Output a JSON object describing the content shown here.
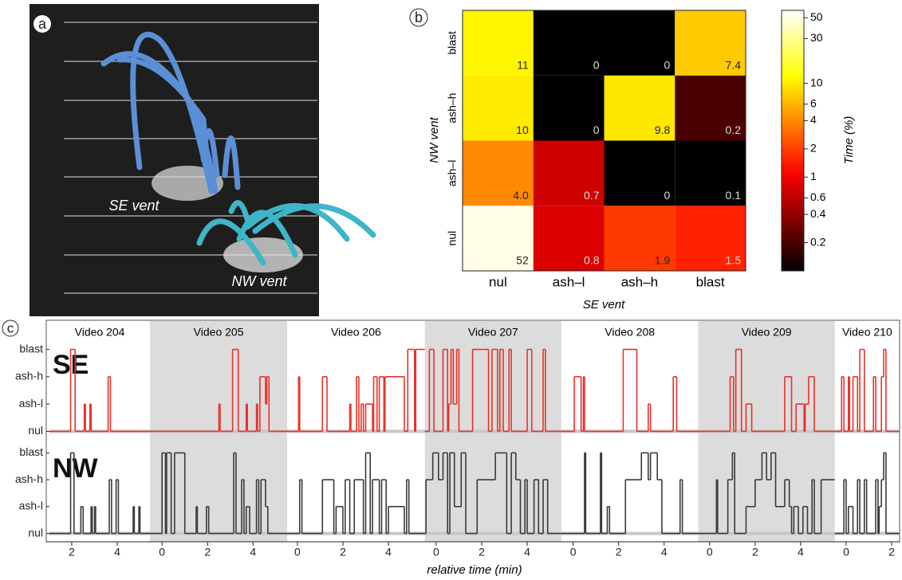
{
  "chart_data": [
    {
      "type": "image",
      "panel": "a",
      "annotations": [
        "SE vent",
        "NW vent"
      ]
    },
    {
      "type": "heatmap",
      "panel": "b",
      "x_label": "SE vent",
      "y_label": "NW vent",
      "x_categories": [
        "nul",
        "ash–l",
        "ash–h",
        "blast"
      ],
      "y_categories": [
        "nul",
        "ash–l",
        "ash–h",
        "blast"
      ],
      "values": [
        [
          52,
          0.8,
          1.9,
          1.5
        ],
        [
          4.0,
          0.7,
          0,
          0.1
        ],
        [
          10,
          0,
          9.8,
          0.2
        ],
        [
          11,
          0,
          0,
          7.4
        ]
      ],
      "value_labels": [
        [
          "52",
          "0.8",
          "1.9",
          "1.5"
        ],
        [
          "4.0",
          "0.7",
          "0",
          "0.1"
        ],
        [
          "10",
          "0",
          "9.8",
          "0.2"
        ],
        [
          "11",
          "0",
          "0",
          "7.4"
        ]
      ],
      "colormap": "hot",
      "log_scale": true,
      "colorbar_label": "Time (%)",
      "clim": [
        0.1,
        60
      ],
      "cticks": [
        0.2,
        0.4,
        0.6,
        1,
        2,
        4,
        6,
        10,
        30,
        50
      ]
    },
    {
      "type": "step",
      "panel": "c",
      "x_label": "relative time (min)",
      "ylim": [
        -0.25,
        3.25
      ],
      "yticks": [
        {
          "value": 0,
          "label": "nul"
        },
        {
          "value": 1,
          "label": "ash-l"
        },
        {
          "value": 2,
          "label": "ash-h"
        },
        {
          "value": 3,
          "label": "blast"
        }
      ],
      "rows": [
        {
          "name": "SE",
          "color": "#e8322a"
        },
        {
          "name": "NW",
          "color": "#3a3a3a"
        }
      ],
      "videos": [
        {
          "name": "Video 204",
          "shaded": false,
          "xlim": [
            1.02,
            5.44
          ],
          "xticks": [
            2,
            4
          ],
          "series": [
            {
              "x": [
                1.02,
                1.95,
                2.15,
                2.55,
                2.6,
                2.8,
                2.85,
                3.6,
                3.7
              ],
              "values": [
                0,
                3,
                0,
                1,
                0,
                1,
                0,
                2,
                0
              ]
            },
            {
              "x": [
                1.02,
                1.95,
                2.1,
                2.4,
                2.5,
                2.85,
                2.9,
                3.0,
                3.05,
                3.65,
                3.75,
                3.95,
                4.05,
                4.7,
                4.75,
                4.95,
                5.0
              ],
              "values": [
                0,
                3,
                0,
                1,
                0,
                1,
                0,
                1,
                0,
                2,
                0,
                2,
                0,
                1,
                0,
                1,
                0
              ]
            }
          ]
        },
        {
          "name": "Video 205",
          "shaded": true,
          "xlim": [
            -0.53,
            5.5
          ],
          "xticks": [
            0,
            2,
            4
          ],
          "series": [
            {
              "x": [
                -0.53,
                2.5,
                2.55,
                3.1,
                3.35,
                3.7,
                3.75,
                4.15,
                4.2,
                4.3,
                4.55,
                4.6,
                4.7
              ],
              "values": [
                0,
                1,
                0,
                3,
                0,
                1,
                0,
                1,
                0,
                2,
                1,
                2,
                0
              ]
            },
            {
              "x": [
                -0.53,
                0.0,
                0.15,
                0.2,
                0.4,
                0.55,
                0.8,
                1.0,
                1.5,
                1.55,
                1.95,
                2.05,
                3.15,
                3.25,
                3.5,
                3.6,
                3.7,
                3.85,
                4.15,
                4.25,
                4.35,
                4.55,
                4.65
              ],
              "values": [
                0,
                3,
                0,
                3,
                0,
                3,
                3,
                0,
                1,
                0,
                1,
                0,
                3,
                0,
                2,
                0,
                1,
                0,
                2,
                0,
                2,
                1,
                0
              ]
            }
          ]
        },
        {
          "name": "Video 206",
          "shaded": false,
          "xlim": [
            -0.45,
            5.6
          ],
          "xticks": [
            0,
            2,
            4
          ],
          "series": [
            {
              "x": [
                -0.45,
                0.05,
                0.1,
                1.1,
                1.3,
                2.3,
                2.35,
                2.6,
                2.7,
                2.8,
                2.9,
                3.0,
                3.3,
                3.35,
                3.5,
                3.6,
                3.8,
                3.85,
                4.7,
                4.85,
                5.15,
                5.2
              ],
              "values": [
                0,
                2,
                0,
                2,
                0,
                1,
                0,
                2,
                0,
                1,
                0,
                1,
                0,
                2,
                0,
                2,
                0,
                2,
                0,
                3,
                0,
                3
              ]
            },
            {
              "x": [
                -0.45,
                0.1,
                0.2,
                1.1,
                1.6,
                1.7,
                2.0,
                2.1,
                2.3,
                2.5,
                2.9,
                3.0,
                3.2,
                3.3,
                3.6,
                3.7,
                3.9,
                4.0,
                4.7,
                4.8,
                4.9
              ],
              "values": [
                0,
                2,
                0,
                2,
                0,
                1,
                0,
                2,
                0,
                2,
                0,
                3,
                0,
                2,
                0,
                2,
                0,
                1,
                0,
                2,
                0
              ]
            }
          ]
        },
        {
          "name": "Video 207",
          "shaded": true,
          "xlim": [
            -0.5,
            5.5
          ],
          "xticks": [
            0,
            2,
            4
          ],
          "series": [
            {
              "x": [
                -0.5,
                -0.3,
                -0.1,
                0.3,
                0.5,
                0.55,
                0.65,
                0.75,
                0.9,
                1.0,
                1.6,
                2.3,
                2.45,
                2.7,
                2.8,
                2.95,
                3.2,
                3.3,
                4.0,
                4.2,
                4.7,
                4.8
              ],
              "values": [
                0,
                3,
                0,
                3,
                0,
                1,
                3,
                1,
                3,
                0,
                3,
                0,
                3,
                0,
                3,
                0,
                3,
                0,
                3,
                0,
                3,
                0
              ]
            },
            {
              "x": [
                -0.5,
                -0.45,
                -0.15,
                0.1,
                0.3,
                0.5,
                0.6,
                0.8,
                1.1,
                1.3,
                1.8,
                2.6,
                3.1,
                3.3,
                3.5,
                3.7,
                3.9,
                4.0,
                4.3,
                4.5,
                4.7,
                4.9,
                5.0
              ],
              "values": [
                0,
                2,
                3,
                2,
                3,
                0,
                3,
                1,
                3,
                0,
                2,
                3,
                0,
                3,
                2,
                0,
                2,
                0,
                2,
                0,
                2,
                0,
                0
              ]
            }
          ]
        },
        {
          "name": "Video 208",
          "shaded": false,
          "xlim": [
            -0.52,
            5.5
          ],
          "xticks": [
            0,
            2,
            4
          ],
          "series": [
            {
              "x": [
                -0.52,
                0.05,
                0.35,
                0.45,
                0.5,
                2.2,
                2.8,
                3.3,
                3.4,
                4.4,
                4.55
              ],
              "values": [
                0,
                2,
                0,
                2,
                0,
                3,
                0,
                1,
                0,
                2,
                0
              ]
            },
            {
              "x": [
                -0.52,
                0.5,
                0.55,
                1.2,
                1.25,
                1.5,
                1.6,
                2.3,
                3.0,
                3.3,
                3.4,
                3.7,
                3.9,
                4.7,
                4.8
              ],
              "values": [
                0,
                3,
                0,
                3,
                0,
                1,
                0,
                2,
                3,
                2,
                3,
                2,
                0,
                2,
                0
              ]
            }
          ]
        },
        {
          "name": "Video 209",
          "shaded": true,
          "xlim": [
            -0.5,
            5.5
          ],
          "xticks": [
            0,
            2,
            4
          ],
          "series": [
            {
              "x": [
                -0.5,
                0.9,
                1.05,
                1.15,
                1.4,
                1.6,
                1.85,
                3.3,
                3.6,
                3.8,
                4.15,
                4.2,
                4.35,
                4.6
              ],
              "values": [
                0,
                2,
                0,
                3,
                0,
                1,
                0,
                2,
                0,
                1,
                0,
                1,
                2,
                0
              ]
            },
            {
              "x": [
                -0.5,
                0.3,
                0.35,
                0.8,
                1.0,
                1.1,
                1.6,
                2.0,
                2.3,
                2.5,
                2.7,
                2.9,
                3.3,
                3.5,
                3.6,
                3.7,
                3.9,
                4.1,
                4.3,
                4.5,
                4.6,
                4.9
              ],
              "values": [
                0,
                2,
                0,
                2,
                3,
                0,
                1,
                2,
                3,
                2,
                3,
                1,
                2,
                1,
                0,
                1,
                0,
                1,
                0,
                2,
                0,
                2
              ]
            }
          ]
        },
        {
          "name": "Video 210",
          "shaded": false,
          "xlim": [
            -0.5,
            2.35
          ],
          "xticks": [
            0,
            2
          ],
          "series": [
            {
              "x": [
                -0.5,
                -0.2,
                -0.1,
                0.1,
                0.15,
                0.3,
                0.5,
                0.6,
                0.8,
                1.2,
                1.3,
                1.55,
                1.65,
                1.75
              ],
              "values": [
                0,
                2,
                0,
                2,
                0,
                2,
                0,
                3,
                0,
                2,
                0,
                2,
                3,
                0
              ]
            },
            {
              "x": [
                -0.5,
                -0.1,
                0.0,
                0.1,
                0.3,
                0.5,
                0.6,
                0.8,
                0.9,
                1.3,
                1.4,
                1.45,
                1.55,
                1.65,
                1.75
              ],
              "values": [
                0,
                2,
                0,
                1,
                0,
                2,
                0,
                2,
                0,
                2,
                0,
                1,
                2,
                3,
                0
              ]
            }
          ]
        }
      ]
    }
  ]
}
